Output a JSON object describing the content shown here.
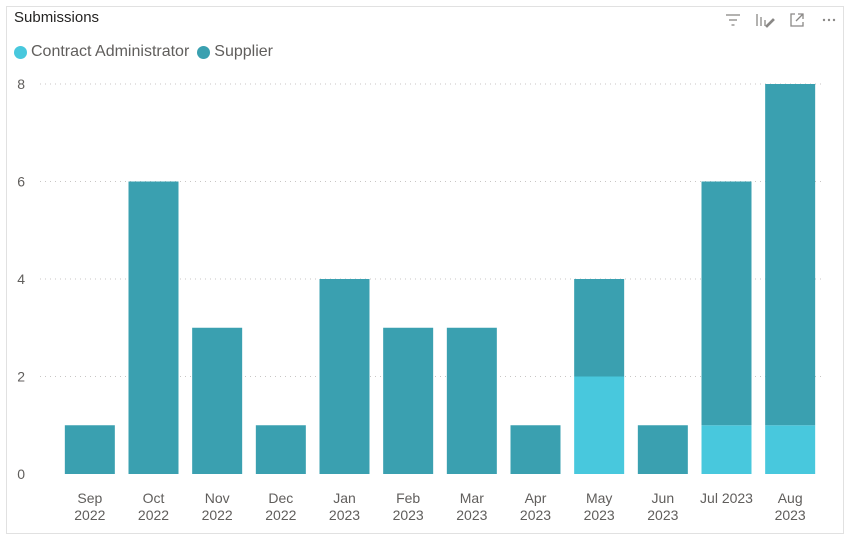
{
  "visual": {
    "title": "Submissions",
    "header_icons": [
      "filter-icon",
      "format-visual-icon",
      "focus-mode-icon",
      "more-options-icon"
    ]
  },
  "legend": {
    "items": [
      {
        "label": "Contract Administrator",
        "color": "#48c8dd"
      },
      {
        "label": "Supplier",
        "color": "#3aa0b0"
      }
    ]
  },
  "colors": {
    "grid": "#c8c6c4",
    "axis_text": "#605e5c"
  },
  "chart_data": {
    "type": "bar",
    "stacked": true,
    "title": "Submissions",
    "categories": [
      [
        "Sep",
        "2022"
      ],
      [
        "Oct",
        "2022"
      ],
      [
        "Nov",
        "2022"
      ],
      [
        "Dec",
        "2022"
      ],
      [
        "Jan",
        "2023"
      ],
      [
        "Feb",
        "2023"
      ],
      [
        "Mar",
        "2023"
      ],
      [
        "Apr",
        "2023"
      ],
      [
        "May",
        "2023"
      ],
      [
        "Jun",
        "2023"
      ],
      [
        "Jul 2023"
      ],
      [
        "Aug",
        "2023"
      ]
    ],
    "series": [
      {
        "name": "Contract Administrator",
        "color": "#48c8dd",
        "values": [
          0,
          0,
          0,
          0,
          0,
          0,
          0,
          0,
          2,
          0,
          1,
          1
        ]
      },
      {
        "name": "Supplier",
        "color": "#3aa0b0",
        "values": [
          1,
          6,
          3,
          1,
          4,
          3,
          3,
          1,
          2,
          1,
          5,
          7
        ]
      }
    ],
    "ylim": [
      0,
      8
    ],
    "yticks": [
      0,
      2,
      4,
      6,
      8
    ],
    "grid": true,
    "legend_position": "top-left"
  }
}
